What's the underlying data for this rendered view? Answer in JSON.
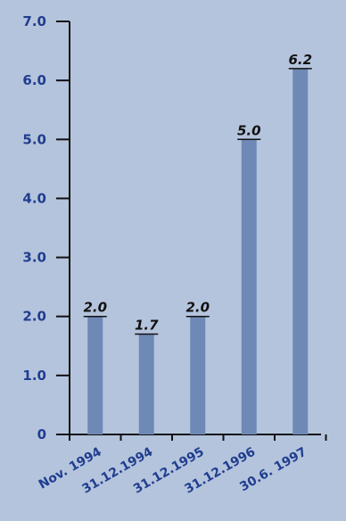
{
  "colors": {
    "background": "#b5c4dd",
    "bar": "#6f89b6",
    "axis": "#111111",
    "tick_label": "#1f3e8f",
    "data_label": "#111111"
  },
  "chart_data": {
    "type": "bar",
    "categories": [
      "Nov. 1994",
      "31.12.1994",
      "31.12.1995",
      "31.12.1996",
      "30.6. 1997"
    ],
    "values": [
      2.0,
      1.7,
      2.0,
      5.0,
      6.2
    ],
    "value_labels": [
      "2.0",
      "1.7",
      "2.0",
      "5.0",
      "6.2"
    ],
    "title": "",
    "xlabel": "",
    "ylabel": "",
    "ylim": [
      0,
      7
    ],
    "yticks": [
      {
        "value": 0,
        "label": "0"
      },
      {
        "value": 1,
        "label": "1.0"
      },
      {
        "value": 2,
        "label": "2.0"
      },
      {
        "value": 3,
        "label": "3.0"
      },
      {
        "value": 4,
        "label": "4.0"
      },
      {
        "value": 5,
        "label": "5.0"
      },
      {
        "value": 6,
        "label": "6.0"
      },
      {
        "value": 7,
        "label": "7.0"
      }
    ],
    "grid": false,
    "legend": "none"
  }
}
